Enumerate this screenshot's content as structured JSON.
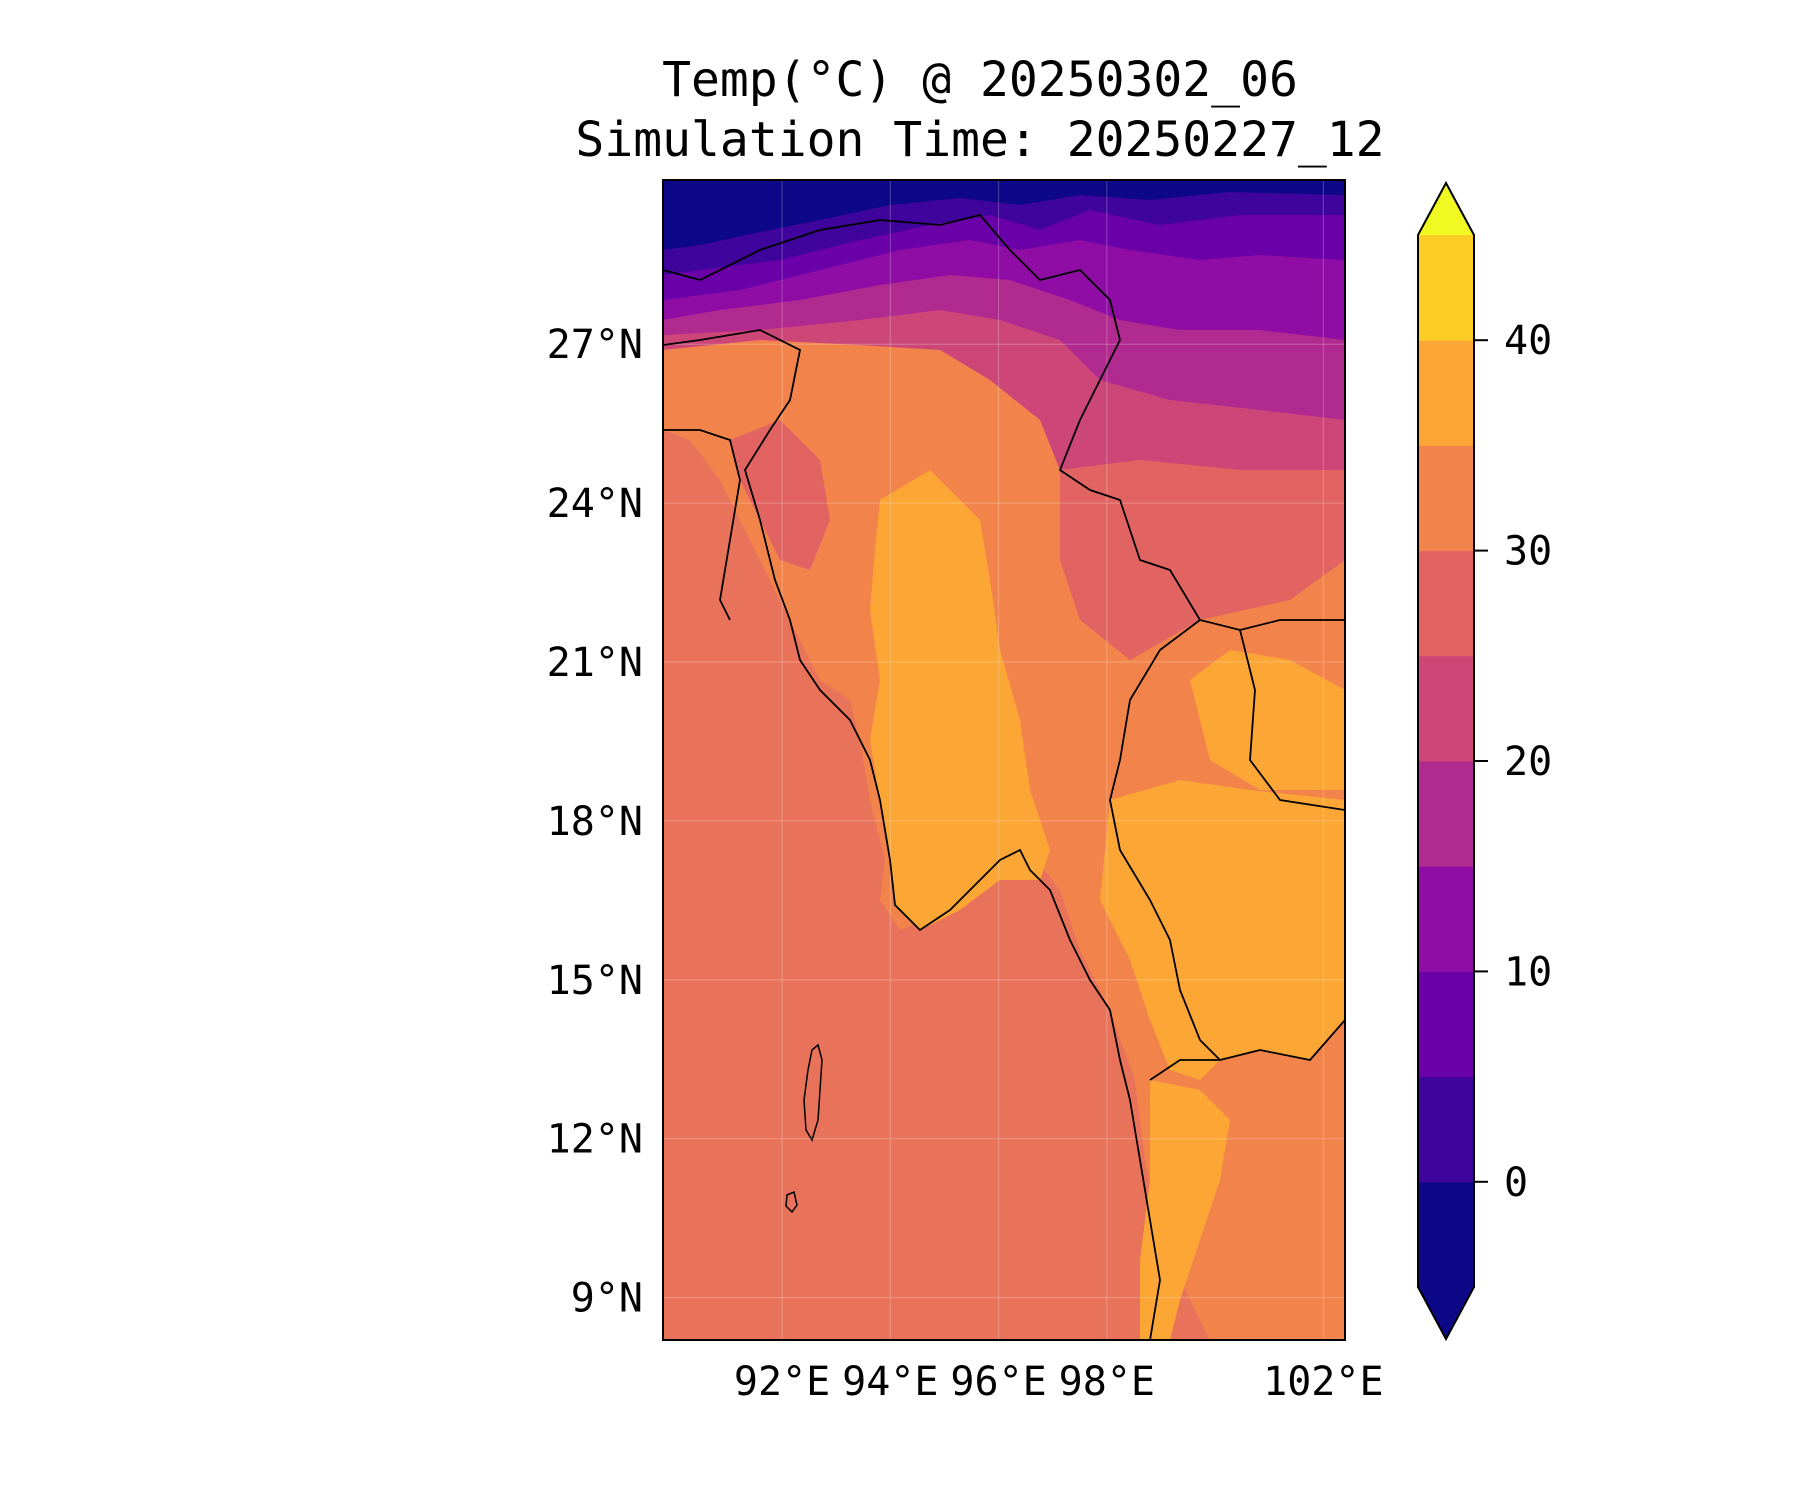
{
  "title": {
    "line1": "Temp(°C) @ 20250302_06",
    "line2": "Simulation Time: 20250227_12"
  },
  "map": {
    "lon_range": [
      89.8,
      102.4
    ],
    "lat_range": [
      8.2,
      30.1
    ],
    "lat_ticks": [
      "27°N",
      "24°N",
      "21°N",
      "18°N",
      "15°N",
      "12°N",
      "9°N"
    ],
    "lat_values": [
      27,
      24,
      21,
      18,
      15,
      12,
      9
    ],
    "lon_ticks": [
      "92°E",
      "94°E",
      "96°E",
      "98°E",
      "102°E"
    ],
    "lon_values": [
      92,
      94,
      96,
      98,
      102
    ],
    "grid": true
  },
  "colorbar": {
    "tick_labels": [
      "40",
      "30",
      "20",
      "10",
      "0"
    ],
    "tick_values": [
      40,
      30,
      20,
      10,
      0
    ],
    "level_min": -5,
    "level_max": 45,
    "level_step": 5,
    "extend": "both",
    "colors": [
      "#0d0887",
      "#3e049c",
      "#6a00a8",
      "#8f0da4",
      "#b12a90",
      "#cc4778",
      "#e16462",
      "#f2844b",
      "#fca636",
      "#fcce25",
      "#f0f921"
    ]
  },
  "fields": {
    "ocean_temp_c": 27,
    "lowland_temp_c": 37,
    "northern_mountains_temp_c": 2
  }
}
